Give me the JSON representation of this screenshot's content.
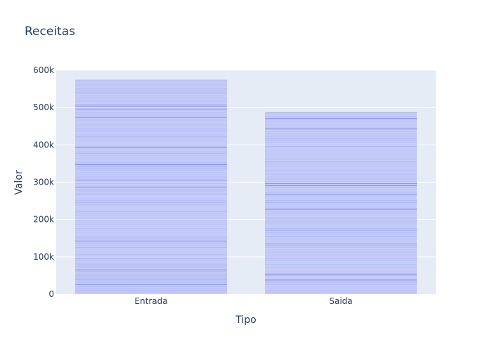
{
  "chart_data": {
    "type": "bar",
    "title": "Receitas",
    "xlabel": "Tipo",
    "ylabel": "Valor",
    "categories": [
      "Entrada",
      "Saida"
    ],
    "values": [
      575000,
      488000
    ],
    "ylim": [
      0,
      600000
    ],
    "yticks": [
      {
        "value": 0,
        "label": "0"
      },
      {
        "value": 100000,
        "label": "100k"
      },
      {
        "value": 200000,
        "label": "200k"
      },
      {
        "value": 300000,
        "label": "300k"
      },
      {
        "value": 400000,
        "label": "400k"
      },
      {
        "value": 500000,
        "label": "500k"
      },
      {
        "value": 600000,
        "label": "600k"
      }
    ],
    "grid": true,
    "colors": {
      "bar_fill": "#636efa",
      "plot_background": "#e5ecf6",
      "gridline": "#ffffff",
      "text": "#2a3f5f"
    }
  }
}
